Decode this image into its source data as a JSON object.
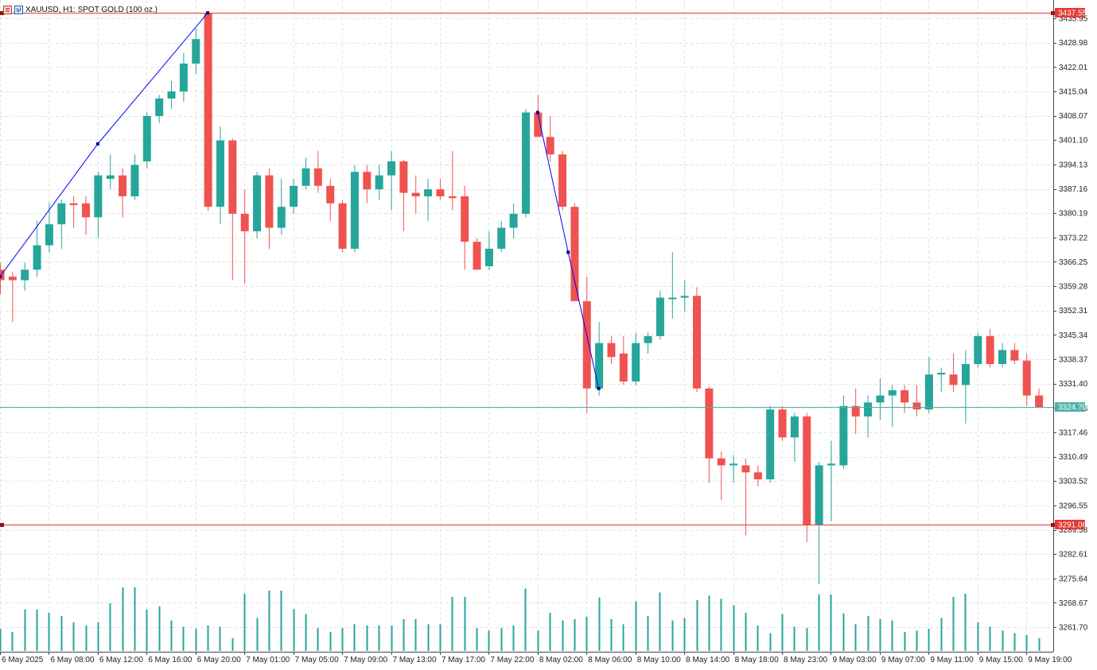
{
  "header": {
    "symbol_label": "XAUUSD, H1:  SPOT GOLD (100 oz.)",
    "icon_menu": "chart-menu-icon",
    "icon_chart": "chart-type-icon"
  },
  "colors": {
    "bull": "#26a69a",
    "bear": "#ef5350",
    "grid": "#e4e4e4",
    "hline": "#e53935",
    "price_line": "#4fb3a9",
    "trendline": "#0000ff",
    "volume": "#26a69a"
  },
  "price_levels": {
    "top_label": "3437.55",
    "current_label": "3324.70",
    "bottom_label": "3291.06"
  },
  "chart_data": {
    "type": "candlestick",
    "symbol": "XAUUSD",
    "timeframe": "H1",
    "ylim": [
      3269.0,
      3443.0
    ],
    "y_ticks": [
      "3435.95",
      "3428.98",
      "3422.01",
      "3415.04",
      "3408.07",
      "3401.10",
      "3394.13",
      "3387.16",
      "3380.19",
      "3373.22",
      "3366.25",
      "3359.28",
      "3352.31",
      "3345.34",
      "3338.37",
      "3331.40",
      "3324.43",
      "3317.46",
      "3310.49",
      "3303.52",
      "3296.55",
      "3289.58",
      "3282.61",
      "3275.64",
      "3268.67",
      "3261.70"
    ],
    "x_labels": [
      "6 May 2025",
      "6 May 08:00",
      "6 May 12:00",
      "6 May 16:00",
      "6 May 20:00",
      "7 May 01:00",
      "7 May 05:00",
      "7 May 09:00",
      "7 May 13:00",
      "7 May 17:00",
      "7 May 22:00",
      "8 May 02:00",
      "8 May 06:00",
      "8 May 10:00",
      "8 May 14:00",
      "8 May 18:00",
      "8 May 23:00",
      "9 May 03:00",
      "9 May 07:00",
      "9 May 11:00",
      "9 May 15:00",
      "9 May 19:00"
    ],
    "horizontal_levels": [
      3437.55,
      3324.7,
      3291.06
    ],
    "trendlines": [
      {
        "points": [
          [
            0,
            3362.0
          ],
          [
            8,
            3400.0
          ],
          [
            17,
            3437.5
          ]
        ]
      },
      {
        "points": [
          [
            44,
            3409.0
          ],
          [
            46.5,
            3369.0
          ],
          [
            49,
            3330.0
          ]
        ]
      }
    ],
    "candles": [
      {
        "o": 3364.0,
        "h": 3366.0,
        "l": 3357.0,
        "c": 3361.0
      },
      {
        "o": 3362.0,
        "h": 3363.5,
        "l": 3349.0,
        "c": 3361.0
      },
      {
        "o": 3361.0,
        "h": 3366.0,
        "l": 3358.0,
        "c": 3364.0
      },
      {
        "o": 3364.0,
        "h": 3378.0,
        "l": 3362.0,
        "c": 3371.0
      },
      {
        "o": 3371.0,
        "h": 3383.0,
        "l": 3369.0,
        "c": 3377.0
      },
      {
        "o": 3377.0,
        "h": 3384.0,
        "l": 3370.0,
        "c": 3383.0
      },
      {
        "o": 3383.0,
        "h": 3385.0,
        "l": 3376.0,
        "c": 3382.5
      },
      {
        "o": 3383.0,
        "h": 3385.0,
        "l": 3374.0,
        "c": 3379.0
      },
      {
        "o": 3379.0,
        "h": 3392.0,
        "l": 3373.0,
        "c": 3391.0
      },
      {
        "o": 3390.0,
        "h": 3397.0,
        "l": 3387.0,
        "c": 3391.0
      },
      {
        "o": 3391.0,
        "h": 3393.0,
        "l": 3379.0,
        "c": 3385.0
      },
      {
        "o": 3385.0,
        "h": 3397.0,
        "l": 3384.0,
        "c": 3394.0
      },
      {
        "o": 3395.0,
        "h": 3409.0,
        "l": 3393.0,
        "c": 3408.0
      },
      {
        "o": 3408.0,
        "h": 3414.0,
        "l": 3406.0,
        "c": 3413.0
      },
      {
        "o": 3413.0,
        "h": 3418.0,
        "l": 3410.0,
        "c": 3415.0
      },
      {
        "o": 3415.0,
        "h": 3426.0,
        "l": 3412.0,
        "c": 3423.0
      },
      {
        "o": 3423.0,
        "h": 3433.0,
        "l": 3420.0,
        "c": 3430.0
      },
      {
        "o": 3437.5,
        "h": 3437.5,
        "l": 3381.0,
        "c": 3382.0
      },
      {
        "o": 3382.0,
        "h": 3405.0,
        "l": 3377.0,
        "c": 3401.0
      },
      {
        "o": 3401.0,
        "h": 3401.5,
        "l": 3361.0,
        "c": 3380.0
      },
      {
        "o": 3380.0,
        "h": 3387.0,
        "l": 3360.0,
        "c": 3375.0
      },
      {
        "o": 3375.0,
        "h": 3392.0,
        "l": 3373.0,
        "c": 3391.0
      },
      {
        "o": 3391.0,
        "h": 3393.0,
        "l": 3370.0,
        "c": 3376.0
      },
      {
        "o": 3376.0,
        "h": 3390.0,
        "l": 3374.0,
        "c": 3382.0
      },
      {
        "o": 3382.0,
        "h": 3390.0,
        "l": 3380.0,
        "c": 3388.0
      },
      {
        "o": 3388.0,
        "h": 3396.0,
        "l": 3387.0,
        "c": 3393.0
      },
      {
        "o": 3393.0,
        "h": 3398.0,
        "l": 3386.0,
        "c": 3388.0
      },
      {
        "o": 3388.0,
        "h": 3390.0,
        "l": 3378.0,
        "c": 3383.0
      },
      {
        "o": 3383.0,
        "h": 3384.0,
        "l": 3369.0,
        "c": 3370.0
      },
      {
        "o": 3370.0,
        "h": 3394.0,
        "l": 3369.0,
        "c": 3392.0
      },
      {
        "o": 3392.0,
        "h": 3394.0,
        "l": 3383.0,
        "c": 3387.0
      },
      {
        "o": 3387.0,
        "h": 3394.0,
        "l": 3384.0,
        "c": 3391.0
      },
      {
        "o": 3391.0,
        "h": 3398.0,
        "l": 3381.0,
        "c": 3395.0
      },
      {
        "o": 3395.0,
        "h": 3395.5,
        "l": 3375.0,
        "c": 3386.0
      },
      {
        "o": 3386.0,
        "h": 3391.0,
        "l": 3380.0,
        "c": 3385.0
      },
      {
        "o": 3385.0,
        "h": 3390.0,
        "l": 3378.0,
        "c": 3387.0
      },
      {
        "o": 3387.0,
        "h": 3390.0,
        "l": 3384.0,
        "c": 3385.0
      },
      {
        "o": 3385.0,
        "h": 3398.0,
        "l": 3381.0,
        "c": 3384.5
      },
      {
        "o": 3385.0,
        "h": 3388.0,
        "l": 3364.0,
        "c": 3372.0
      },
      {
        "o": 3372.0,
        "h": 3373.0,
        "l": 3364.0,
        "c": 3364.0
      },
      {
        "o": 3365.0,
        "h": 3375.0,
        "l": 3364.0,
        "c": 3370.0
      },
      {
        "o": 3370.0,
        "h": 3378.0,
        "l": 3369.0,
        "c": 3376.0
      },
      {
        "o": 3376.0,
        "h": 3383.0,
        "l": 3373.0,
        "c": 3380.0
      },
      {
        "o": 3380.0,
        "h": 3410.0,
        "l": 3379.0,
        "c": 3409.0
      },
      {
        "o": 3409.0,
        "h": 3414.0,
        "l": 3402.0,
        "c": 3402.0
      },
      {
        "o": 3402.0,
        "h": 3408.0,
        "l": 3395.0,
        "c": 3397.0
      },
      {
        "o": 3397.0,
        "h": 3398.0,
        "l": 3381.0,
        "c": 3382.0
      },
      {
        "o": 3382.0,
        "h": 3383.0,
        "l": 3355.0,
        "c": 3355.0
      },
      {
        "o": 3355.0,
        "h": 3362.0,
        "l": 3323.0,
        "c": 3330.0
      },
      {
        "o": 3330.0,
        "h": 3349.0,
        "l": 3328.0,
        "c": 3343.0
      },
      {
        "o": 3343.0,
        "h": 3345.0,
        "l": 3337.0,
        "c": 3339.0
      },
      {
        "o": 3340.0,
        "h": 3345.0,
        "l": 3331.0,
        "c": 3332.0
      },
      {
        "o": 3332.0,
        "h": 3346.0,
        "l": 3331.0,
        "c": 3343.0
      },
      {
        "o": 3343.0,
        "h": 3346.0,
        "l": 3340.0,
        "c": 3345.0
      },
      {
        "o": 3345.0,
        "h": 3358.0,
        "l": 3344.0,
        "c": 3356.0
      },
      {
        "o": 3356.0,
        "h": 3369.0,
        "l": 3350.0,
        "c": 3356.0
      },
      {
        "o": 3356.0,
        "h": 3361.0,
        "l": 3352.0,
        "c": 3356.5
      },
      {
        "o": 3356.5,
        "h": 3359.0,
        "l": 3329.0,
        "c": 3330.0
      },
      {
        "o": 3330.0,
        "h": 3330.5,
        "l": 3303.0,
        "c": 3310.0
      },
      {
        "o": 3310.0,
        "h": 3312.0,
        "l": 3298.0,
        "c": 3308.0
      },
      {
        "o": 3308.0,
        "h": 3311.0,
        "l": 3303.0,
        "c": 3308.5
      },
      {
        "o": 3308.0,
        "h": 3310.0,
        "l": 3288.0,
        "c": 3306.0
      },
      {
        "o": 3306.0,
        "h": 3308.0,
        "l": 3302.0,
        "c": 3304.0
      },
      {
        "o": 3304.0,
        "h": 3325.0,
        "l": 3303.0,
        "c": 3324.0
      },
      {
        "o": 3324.0,
        "h": 3325.0,
        "l": 3315.0,
        "c": 3316.0
      },
      {
        "o": 3316.0,
        "h": 3323.0,
        "l": 3309.0,
        "c": 3322.0
      },
      {
        "o": 3322.0,
        "h": 3323.0,
        "l": 3286.0,
        "c": 3291.0
      },
      {
        "o": 3291.0,
        "h": 3309.0,
        "l": 3274.0,
        "c": 3308.0
      },
      {
        "o": 3308.0,
        "h": 3315.0,
        "l": 3292.0,
        "c": 3308.5
      },
      {
        "o": 3308.0,
        "h": 3328.0,
        "l": 3307.0,
        "c": 3325.0
      },
      {
        "o": 3325.0,
        "h": 3330.0,
        "l": 3317.0,
        "c": 3322.0
      },
      {
        "o": 3322.0,
        "h": 3328.0,
        "l": 3316.0,
        "c": 3326.0
      },
      {
        "o": 3326.0,
        "h": 3333.0,
        "l": 3321.0,
        "c": 3328.0
      },
      {
        "o": 3328.0,
        "h": 3331.0,
        "l": 3319.0,
        "c": 3329.5
      },
      {
        "o": 3329.5,
        "h": 3331.0,
        "l": 3323.0,
        "c": 3326.0
      },
      {
        "o": 3326.0,
        "h": 3331.0,
        "l": 3322.0,
        "c": 3324.0
      },
      {
        "o": 3324.0,
        "h": 3339.0,
        "l": 3323.0,
        "c": 3334.0
      },
      {
        "o": 3334.0,
        "h": 3336.0,
        "l": 3329.0,
        "c": 3334.5
      },
      {
        "o": 3334.0,
        "h": 3340.0,
        "l": 3329.0,
        "c": 3331.0
      },
      {
        "o": 3331.0,
        "h": 3341.0,
        "l": 3320.0,
        "c": 3337.0
      },
      {
        "o": 3337.0,
        "h": 3346.0,
        "l": 3336.0,
        "c": 3345.0
      },
      {
        "o": 3345.0,
        "h": 3347.0,
        "l": 3336.0,
        "c": 3337.0
      },
      {
        "o": 3337.0,
        "h": 3343.0,
        "l": 3336.0,
        "c": 3341.0
      },
      {
        "o": 3341.0,
        "h": 3343.0,
        "l": 3337.0,
        "c": 3338.0
      },
      {
        "o": 3338.0,
        "h": 3340.0,
        "l": 3325.0,
        "c": 3328.0
      },
      {
        "o": 3328.0,
        "h": 3330.0,
        "l": 3324.5,
        "c": 3324.7
      }
    ],
    "volume_relative": [
      0.35,
      0.3,
      0.65,
      0.65,
      0.6,
      0.55,
      0.45,
      0.4,
      0.45,
      0.75,
      1.0,
      1.0,
      0.65,
      0.7,
      0.48,
      0.38,
      0.35,
      0.4,
      0.38,
      0.2,
      0.9,
      0.52,
      0.95,
      0.95,
      0.66,
      0.58,
      0.36,
      0.3,
      0.36,
      0.42,
      0.4,
      0.4,
      0.4,
      0.5,
      0.5,
      0.42,
      0.42,
      0.85,
      0.85,
      0.36,
      0.32,
      0.36,
      0.4,
      0.98,
      0.32,
      0.6,
      0.48,
      0.5,
      0.54,
      0.84,
      0.5,
      0.42,
      0.78,
      0.55,
      0.92,
      0.48,
      0.52,
      0.8,
      0.87,
      0.82,
      0.72,
      0.6,
      0.4,
      0.28,
      0.58,
      0.38,
      0.36,
      0.89,
      0.89,
      0.59,
      0.42,
      0.55,
      0.5,
      0.48,
      0.3,
      0.32,
      0.35,
      0.52,
      0.85,
      0.9,
      0.45,
      0.38,
      0.32,
      0.28,
      0.25,
      0.2
    ]
  }
}
